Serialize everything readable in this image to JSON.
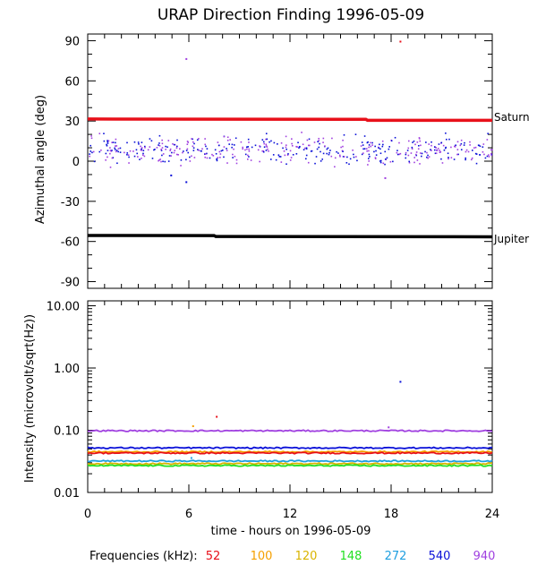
{
  "title": "URAP Direction Finding  1996-05-09",
  "xlabel": "time - hours on 1996-05-09",
  "frequencies_label": "Frequencies (kHz):",
  "frequencies": [
    {
      "label": "52",
      "color": "#e8101a"
    },
    {
      "label": "100",
      "color": "#f5a000"
    },
    {
      "label": "120",
      "color": "#d9b400"
    },
    {
      "label": "148",
      "color": "#22e022"
    },
    {
      "label": "272",
      "color": "#1e9fe0"
    },
    {
      "label": "540",
      "color": "#0a10d8"
    },
    {
      "label": "940",
      "color": "#a040e0"
    }
  ],
  "chart_data": [
    {
      "type": "scatter",
      "ylabel": "Azimuthal angle (deg)",
      "xlim": [
        0,
        24
      ],
      "ylim": [
        -95,
        95
      ],
      "x_ticks": [
        0,
        6,
        12,
        18,
        24
      ],
      "y_ticks": [
        90,
        60,
        30,
        0,
        -30,
        -60,
        -90
      ],
      "y_tick_labels": [
        "90",
        "60",
        "30",
        "0",
        "-30",
        "-60",
        "-90"
      ],
      "reference_lines": [
        {
          "name": "Saturn",
          "color": "#e8101a",
          "points": [
            [
              0,
              31.5
            ],
            [
              16.5,
              31.3
            ],
            [
              16.6,
              30.5
            ],
            [
              24,
              30.5
            ]
          ]
        },
        {
          "name": "Jupiter",
          "color": "#000000",
          "points": [
            [
              0,
              -55.5
            ],
            [
              7.5,
              -55.6
            ],
            [
              7.6,
              -56.3
            ],
            [
              24,
              -56.5
            ]
          ]
        }
      ],
      "scatter_band": {
        "y_min": -6,
        "y_max": 24,
        "center": 9,
        "colors": [
          "#0a10d8",
          "#a040e0"
        ]
      },
      "outliers": [
        {
          "x": 5.8,
          "y": 77,
          "color": "#a040e0"
        },
        {
          "x": 18.5,
          "y": 90,
          "color": "#e8101a"
        },
        {
          "x": 5.8,
          "y": -15,
          "color": "#0a10d8"
        },
        {
          "x": 4.9,
          "y": -10,
          "color": "#0a10d8"
        },
        {
          "x": 17.6,
          "y": -12,
          "color": "#a040e0"
        }
      ]
    },
    {
      "type": "line",
      "ylabel": "Intensity (microvolt/sqrt(Hz))",
      "y_scale": "log",
      "xlim": [
        0,
        24
      ],
      "ylim": [
        0.01,
        12
      ],
      "x_ticks": [
        0,
        6,
        12,
        18,
        24
      ],
      "x_tick_labels": [
        "0",
        "6",
        "12",
        "18",
        "24"
      ],
      "y_ticks": [
        10,
        1,
        0.1,
        0.01
      ],
      "y_tick_labels": [
        "10.00",
        "1.00",
        "0.10",
        "0.01"
      ],
      "series": [
        {
          "color": "#a040e0",
          "level": 0.098
        },
        {
          "color": "#0a10d8",
          "level": 0.052
        },
        {
          "color": "#f5a000",
          "level": 0.045
        },
        {
          "color": "#e8101a",
          "level": 0.043
        },
        {
          "color": "#1e9fe0",
          "level": 0.032
        },
        {
          "color": "#d9b400",
          "level": 0.029
        },
        {
          "color": "#22e022",
          "level": 0.027
        }
      ],
      "spikes": [
        {
          "x": 6.2,
          "y": 0.12,
          "color": "#f5a000"
        },
        {
          "x": 7.6,
          "y": 0.17,
          "color": "#e8101a"
        },
        {
          "x": 18.5,
          "y": 0.62,
          "color": "#0a10d8"
        },
        {
          "x": 17.8,
          "y": 0.115,
          "color": "#a040e0"
        },
        {
          "x": 6.1,
          "y": 0.037,
          "color": "#1e9fe0"
        }
      ]
    }
  ]
}
